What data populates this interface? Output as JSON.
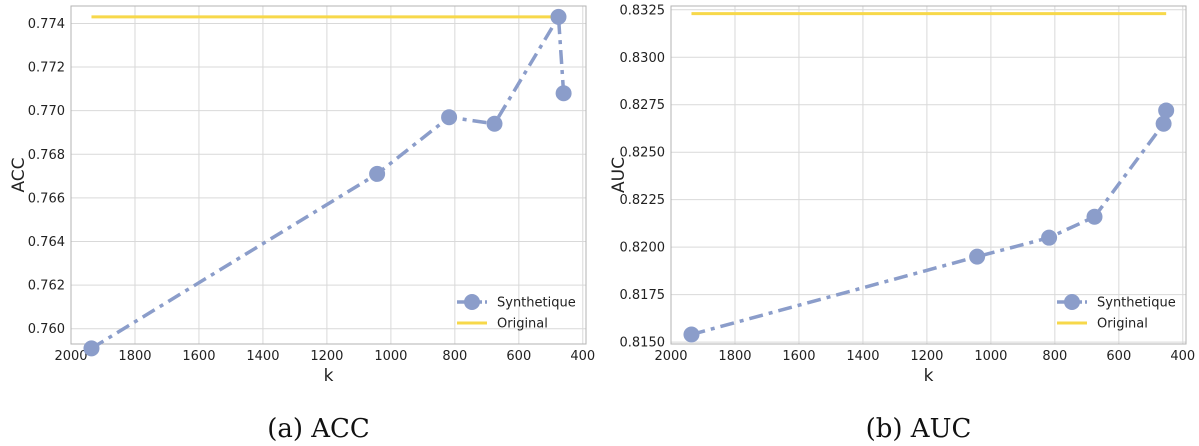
{
  "colors": {
    "synthetique": "#8b9dca",
    "original": "#f7d84a",
    "grid": "#d9d9d9",
    "frame": "#b3b3b3"
  },
  "chart_data": [
    {
      "type": "line",
      "caption": "(a) ACC",
      "xlabel": "k",
      "ylabel": "ACC",
      "xlim": [
        2000,
        390
      ],
      "ylim": [
        0.7593,
        0.7748
      ],
      "xticks": [
        2000,
        1800,
        1600,
        1400,
        1200,
        1000,
        800,
        600,
        400
      ],
      "yticks": [
        0.76,
        0.762,
        0.764,
        0.766,
        0.768,
        0.77,
        0.772,
        0.774
      ],
      "ytick_labels": [
        "0.760",
        "0.762",
        "0.764",
        "0.766",
        "0.768",
        "0.770",
        "0.772",
        "0.774"
      ],
      "grid": true,
      "legend_position": "bottom-right",
      "series": [
        {
          "name": "Synthetique",
          "style": "dash-dot with circle markers",
          "x": [
            1936,
            1043,
            818,
            676,
            476,
            460
          ],
          "y": [
            0.7591,
            0.7671,
            0.7697,
            0.7694,
            0.7743,
            0.7708
          ]
        },
        {
          "name": "Original",
          "style": "solid",
          "x": [
            1936,
            460
          ],
          "y": [
            0.7743,
            0.7743
          ]
        }
      ]
    },
    {
      "type": "line",
      "caption": "(b) AUC",
      "xlabel": "k",
      "ylabel": "AUC",
      "xlim": [
        2000,
        390
      ],
      "ylim": [
        0.8149,
        0.8327
      ],
      "xticks": [
        2000,
        1800,
        1600,
        1400,
        1200,
        1000,
        800,
        600,
        400
      ],
      "yticks": [
        0.815,
        0.8175,
        0.82,
        0.8225,
        0.825,
        0.8275,
        0.83,
        0.8325
      ],
      "ytick_labels": [
        "0.8150",
        "0.8175",
        "0.8200",
        "0.8225",
        "0.8250",
        "0.8275",
        "0.8300",
        "0.8325"
      ],
      "grid": true,
      "legend_position": "bottom-right",
      "series": [
        {
          "name": "Synthetique",
          "style": "dash-dot with circle markers",
          "x": [
            1936,
            1043,
            818,
            676,
            460,
            452
          ],
          "y": [
            0.8154,
            0.8195,
            0.8205,
            0.8216,
            0.8265,
            0.8272
          ]
        },
        {
          "name": "Original",
          "style": "solid",
          "x": [
            1936,
            452
          ],
          "y": [
            0.8323,
            0.8323
          ]
        }
      ]
    }
  ]
}
